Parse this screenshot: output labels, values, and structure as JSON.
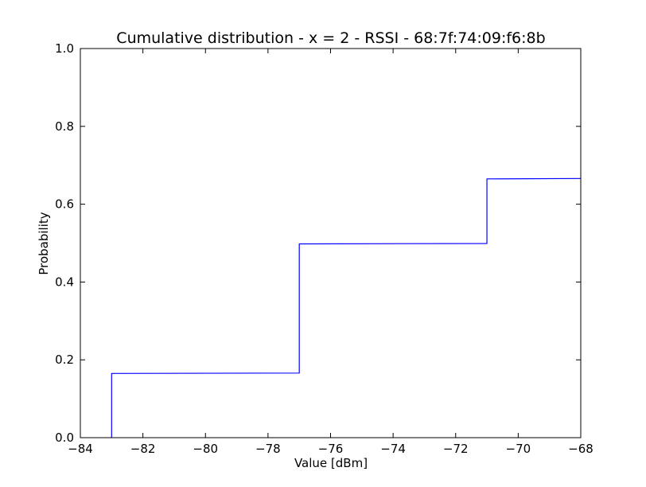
{
  "chart_data": {
    "type": "line",
    "step": "post",
    "title": "Cumulative distribution - x = 2 - RSSI - 68:7f:74:09:f6:8b",
    "xlabel": "Value [dBm]",
    "ylabel": "Probability",
    "xlim": [
      -84,
      -68
    ],
    "ylim": [
      0.0,
      1.0
    ],
    "xticks": [
      -84,
      -82,
      -80,
      -78,
      -76,
      -74,
      -72,
      -70,
      -68
    ],
    "xtick_labels": [
      "−84",
      "−82",
      "−80",
      "−78",
      "−76",
      "−74",
      "−72",
      "−70",
      "−68"
    ],
    "yticks": [
      0.0,
      0.2,
      0.4,
      0.6,
      0.8,
      1.0
    ],
    "ytick_labels": [
      "0.0",
      "0.2",
      "0.4",
      "0.6",
      "0.8",
      "1.0"
    ],
    "grid": false,
    "series": [
      {
        "color": "#0000ff",
        "x": [
          -83,
          -83,
          -77,
          -77,
          -71,
          -71,
          -68
        ],
        "y": [
          0.0,
          0.165,
          0.166,
          0.498,
          0.499,
          0.665,
          0.666
        ]
      }
    ]
  }
}
